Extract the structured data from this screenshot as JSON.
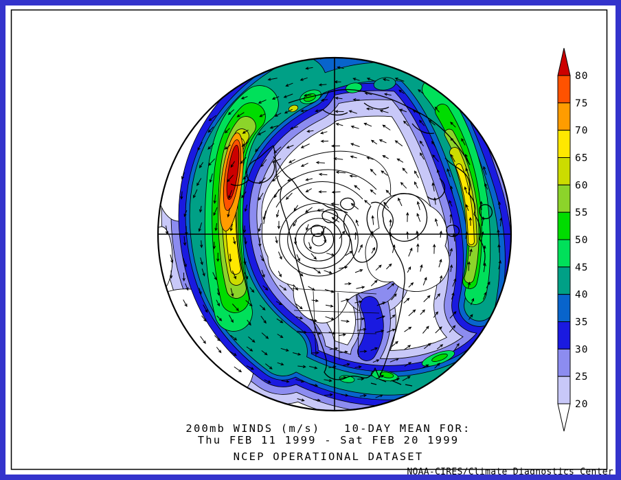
{
  "figure": {
    "background": "#ffffff",
    "frame_color": "#3333cc",
    "plot_border_color": "#000000"
  },
  "caption": {
    "line1": "200mb WINDS (m/s)   10-DAY MEAN FOR:",
    "line2": "Thu FEB 11 1999 - Sat FEB 20 1999",
    "line3": "NCEP OPERATIONAL DATASET"
  },
  "credit": "NOAA-CIRES/Climate Diagnostics Center",
  "colorbar": {
    "orientation": "vertical",
    "units": "m/s",
    "tick_labels": [
      "80",
      "75",
      "70",
      "65",
      "60",
      "55",
      "50",
      "45",
      "40",
      "35",
      "30",
      "25",
      "20"
    ],
    "levels": [
      20,
      25,
      30,
      35,
      40,
      45,
      50,
      55,
      60,
      65,
      70,
      75,
      80
    ],
    "colors_low_to_high": [
      "#c8c8f8",
      "#8c8cf0",
      "#1a1ae0",
      "#0864cc",
      "#00a086",
      "#00e05a",
      "#00dc00",
      "#8cd42a",
      "#ccdc00",
      "#ffe800",
      "#ff9c00",
      "#ff5200"
    ],
    "over_arrow_color": "#cc0000",
    "under_arrow_color": "#ffffff"
  },
  "chart_data": {
    "type": "heatmap",
    "title": "200mb WINDS (m/s)   10-DAY MEAN FOR: Thu FEB 11 1999 - Sat FEB 20 1999",
    "dataset": "NCEP OPERATIONAL DATASET",
    "variable": "200mb wind speed, 10-day mean, with wind direction vectors",
    "units": "m/s",
    "period": {
      "start": "Thu FEB 11 1999",
      "end": "Sat FEB 20 1999"
    },
    "projection": "Northern Hemisphere polar stereographic; North Pole at center with meridian crosshair and circular map boundary",
    "contour_levels_m_s": [
      20,
      25,
      30,
      35,
      40,
      45,
      50,
      55,
      60,
      65,
      70,
      75,
      80
    ],
    "fill_colors_low_to_high": [
      "#c8c8f8",
      "#8c8cf0",
      "#1a1ae0",
      "#0864cc",
      "#00a086",
      "#00e05a",
      "#00dc00",
      "#8cd42a",
      "#ccdc00",
      "#ffe800",
      "#ff9c00",
      "#ff5200"
    ],
    "over_color": "#cc0000",
    "under_color": "#ffffff",
    "legend_position": "right",
    "overlays": [
      "wind direction arrows (counterclockwise westerly flow)",
      "coastlines and state borders",
      "concentric low-wind contour rings near pole",
      "lat/lon crosshair"
    ],
    "features": [
      {
        "name": "North Pacific jet maximum",
        "approx_value_m_s": ">80",
        "map_position": "left of center, band arcing from lower-left up over Alaska"
      },
      {
        "name": "Atlantic / Europe-Africa jet",
        "approx_value_m_s": "65-70",
        "map_position": "right side, band arcing along eastern edge"
      },
      {
        "name": "Subtropical jet over Gulf / Caribbean",
        "approx_value_m_s": "45-50",
        "map_position": "band across bottom of map"
      },
      {
        "name": "Polar low-wind vortex region",
        "approx_value_m_s": "<20",
        "map_position": "map center, concentric contour rings"
      }
    ]
  }
}
